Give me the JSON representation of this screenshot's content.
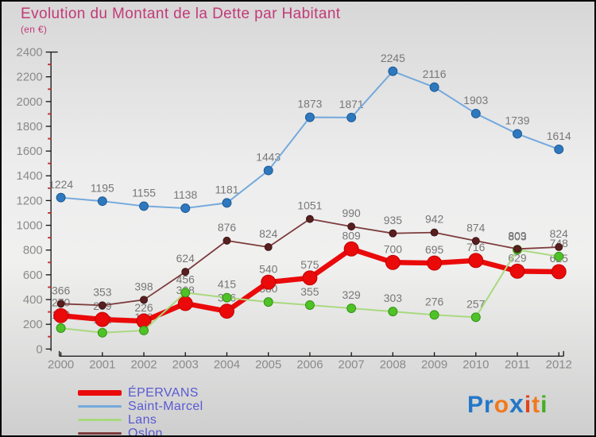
{
  "title": "Evolution du Montant de la Dette par Habitant",
  "subtitle": "(en €)",
  "title_color": "#C23A78",
  "chart_data": {
    "type": "line",
    "x": [
      2000,
      2001,
      2002,
      2003,
      2004,
      2005,
      2006,
      2007,
      2008,
      2009,
      2010,
      2011,
      2012
    ],
    "ylim": [
      0,
      2400
    ],
    "y_major_step": 200,
    "y_minor_step": 100,
    "grid": false,
    "legend_position": "bottom-left",
    "axis_color": "#111111",
    "tick_label_color": "#8A8A8A",
    "minor_tick_color": "#C93030",
    "label_color": "#777777",
    "series": [
      {
        "name": "ÉPERVANS",
        "color": "#EA0A0A",
        "marker_color": "#EA0A0A",
        "marker_stroke": "#C00000",
        "line_width": 6.5,
        "marker_radius": 9,
        "values": [
          270,
          239,
          226,
          368,
          306,
          540,
          575,
          809,
          700,
          695,
          716,
          629,
          625
        ]
      },
      {
        "name": "Saint-Marcel",
        "color": "#74A9DC",
        "marker_color": "#2E78BE",
        "marker_stroke": "#1D5A94",
        "line_width": 2,
        "marker_radius": 5.5,
        "values": [
          1224,
          1195,
          1155,
          1138,
          1181,
          1443,
          1873,
          1871,
          2245,
          2116,
          1903,
          1739,
          1614
        ]
      },
      {
        "name": "Lans",
        "color": "#A9D97E",
        "marker_color": "#4FC228",
        "marker_stroke": "#30930F",
        "line_width": 2,
        "marker_radius": 5.5,
        "values": [
          169,
          132,
          150,
          456,
          415,
          380,
          355,
          329,
          303,
          276,
          257,
          803,
          748
        ]
      },
      {
        "name": "Oslon",
        "color": "#7D3C3C",
        "marker_color": "#571F1F",
        "marker_stroke": "#3F1414",
        "line_width": 1.8,
        "marker_radius": 4.5,
        "values": [
          366,
          353,
          398,
          624,
          876,
          824,
          1051,
          990,
          935,
          942,
          874,
          809,
          824
        ]
      }
    ]
  },
  "legend_text_color": "#5A5AD2",
  "logo": {
    "text": "Proxiti",
    "letters": [
      {
        "char": "P",
        "color": "#2377C8"
      },
      {
        "char": "r",
        "color": "#2377C8"
      },
      {
        "char": "o",
        "color": "#F0791C"
      },
      {
        "char": "x",
        "color": "#2377C8"
      },
      {
        "char": "i",
        "color": "#E0441C"
      },
      {
        "char": "t",
        "color": "#F0791C"
      },
      {
        "char": "i",
        "color": "#44AE22"
      }
    ]
  }
}
